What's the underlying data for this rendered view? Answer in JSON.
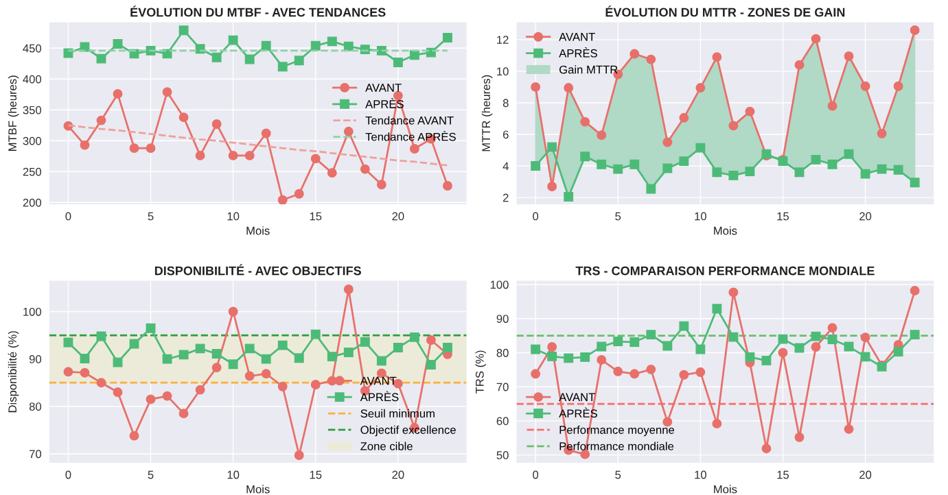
{
  "chart_data": [
    {
      "type": "line",
      "title": "ÉVOLUTION DU MTBF - AVEC TENDANCES",
      "xlabel": "Mois",
      "ylabel": "MTBF (heures)",
      "x": [
        0,
        1,
        2,
        3,
        4,
        5,
        6,
        7,
        8,
        9,
        10,
        11,
        12,
        13,
        14,
        15,
        16,
        17,
        18,
        19,
        20,
        21,
        22,
        23
      ],
      "xlim": [
        -1.15,
        24.15
      ],
      "xticks": [
        0,
        5,
        10,
        15,
        20
      ],
      "ylim": [
        197,
        492
      ],
      "yticks": [
        200,
        250,
        300,
        350,
        400,
        450
      ],
      "grid": true,
      "legend": "center right",
      "series": [
        {
          "name": "AVANT",
          "color": "#e8706a",
          "marker": "circle",
          "values": [
            324,
            293,
            333,
            376,
            288,
            288,
            379,
            338,
            276,
            327,
            276,
            276,
            312,
            204,
            214,
            271,
            248,
            315,
            254,
            229,
            373,
            287,
            303,
            227
          ]
        },
        {
          "name": "APRÈS",
          "color": "#4dbb78",
          "marker": "square",
          "values": [
            442,
            452,
            433,
            457,
            441,
            446,
            441,
            479,
            449,
            435,
            463,
            432,
            454,
            420,
            430,
            454,
            461,
            453,
            448,
            446,
            427,
            439,
            443,
            467
          ]
        },
        {
          "name": "Tendance AVANT",
          "color": "#eea19b",
          "marker": "none",
          "line_style": "dashed",
          "values": [
            325,
            322,
            319,
            317,
            314,
            311,
            308,
            305,
            302,
            300,
            297,
            294,
            291,
            288,
            285,
            283,
            280,
            277,
            274,
            271,
            268,
            266,
            263,
            260
          ]
        },
        {
          "name": "Tendance APRÈS",
          "color": "#8fd2a8",
          "marker": "none",
          "line_style": "dashed",
          "values": [
            446,
            446,
            446,
            446,
            446,
            446,
            446,
            446,
            446,
            446,
            446,
            446,
            446,
            446,
            446,
            446,
            446,
            446,
            446,
            446,
            446,
            446,
            446,
            446
          ]
        }
      ]
    },
    {
      "type": "line",
      "title": "ÉVOLUTION DU MTTR - ZONES DE GAIN",
      "xlabel": "Mois",
      "ylabel": "MTTR (heures)",
      "x": [
        0,
        1,
        2,
        3,
        4,
        5,
        6,
        7,
        8,
        9,
        10,
        11,
        12,
        13,
        14,
        15,
        16,
        17,
        18,
        19,
        20,
        21,
        22,
        23
      ],
      "xlim": [
        -1.15,
        24.15
      ],
      "xticks": [
        0,
        5,
        10,
        15,
        20
      ],
      "ylim": [
        1.57,
        13.1
      ],
      "yticks": [
        2,
        4,
        6,
        8,
        10,
        12
      ],
      "grid": true,
      "legend": "top left",
      "series": [
        {
          "name": "AVANT",
          "color": "#e8706a",
          "marker": "circle",
          "values": [
            9.0,
            2.7,
            8.95,
            6.8,
            5.95,
            9.8,
            11.1,
            10.75,
            5.5,
            7.05,
            8.95,
            10.9,
            6.55,
            7.45,
            4.65,
            4.4,
            10.4,
            12.05,
            7.8,
            10.95,
            9.05,
            6.05,
            9.05,
            12.6
          ]
        },
        {
          "name": "APRÈS",
          "color": "#4dbb78",
          "marker": "square",
          "values": [
            4.0,
            5.2,
            2.05,
            4.6,
            4.1,
            3.8,
            4.1,
            2.55,
            3.85,
            4.3,
            5.15,
            3.6,
            3.4,
            3.65,
            4.75,
            4.3,
            3.6,
            4.4,
            4.1,
            4.75,
            3.5,
            3.8,
            3.75,
            2.95
          ]
        },
        {
          "name": "Gain MTTR",
          "type": "area",
          "color": "#b0d9c6",
          "values": [
            9.0,
            2.7,
            8.95,
            6.8,
            5.95,
            9.8,
            11.1,
            10.75,
            5.5,
            7.05,
            8.95,
            10.9,
            6.55,
            7.45,
            4.65,
            4.4,
            10.4,
            12.05,
            7.8,
            10.95,
            9.05,
            6.05,
            9.05,
            12.6
          ]
        }
      ]
    },
    {
      "type": "line",
      "title": "DISPONIBILITÉ - AVEC OBJECTIFS",
      "xlabel": "Mois",
      "ylabel": "Disponibilité (%)",
      "x": [
        0,
        1,
        2,
        3,
        4,
        5,
        6,
        7,
        8,
        9,
        10,
        11,
        12,
        13,
        14,
        15,
        16,
        17,
        18,
        19,
        20,
        21,
        22,
        23
      ],
      "xlim": [
        -1.15,
        24.15
      ],
      "xticks": [
        0,
        5,
        10,
        15,
        20
      ],
      "ylim": [
        68.1,
        106.5
      ],
      "yticks": [
        70,
        80,
        90,
        100
      ],
      "grid": true,
      "legend": "bottom right",
      "series": [
        {
          "name": "AVANT",
          "color": "#e8706a",
          "marker": "circle",
          "values": [
            87.3,
            87.1,
            85.0,
            83.0,
            73.8,
            81.5,
            82.2,
            78.5,
            83.5,
            88.2,
            100.0,
            86.4,
            86.9,
            84.2,
            69.7,
            84.6,
            85.4,
            104.7,
            83.3,
            87.0,
            84.8,
            75.5,
            94.0,
            91.0
          ]
        },
        {
          "name": "APRÈS",
          "color": "#4dbb78",
          "marker": "square",
          "values": [
            93.5,
            90.1,
            94.8,
            89.3,
            93.2,
            96.5,
            90.0,
            90.9,
            92.2,
            91.1,
            88.9,
            92.2,
            90.0,
            92.9,
            90.2,
            95.2,
            90.5,
            91.4,
            93.6,
            89.6,
            92.4,
            94.6,
            88.8,
            92.4
          ]
        }
      ],
      "ref_lines": [
        {
          "axis": "y",
          "value": 85,
          "label": "Seuil minimum",
          "color": "#fbb03b",
          "line_style": "dashed"
        },
        {
          "axis": "y",
          "value": 95,
          "label": "Objectif excellence",
          "color": "#2e9e3a",
          "line_style": "dashed"
        }
      ],
      "bands": [
        {
          "axis": "y",
          "from": 85,
          "to": 95,
          "label": "Zone cible",
          "color": "#ecebd9"
        }
      ]
    },
    {
      "type": "line",
      "title": "TRS - COMPARAISON PERFORMANCE MONDIALE",
      "xlabel": "Mois",
      "ylabel": "TRS (%)",
      "x": [
        0,
        1,
        2,
        3,
        4,
        5,
        6,
        7,
        8,
        9,
        10,
        11,
        12,
        13,
        14,
        15,
        16,
        17,
        18,
        19,
        20,
        21,
        22,
        23
      ],
      "xlim": [
        -1.15,
        24.15
      ],
      "xticks": [
        0,
        5,
        10,
        15,
        20
      ],
      "ylim": [
        47.7,
        101.1
      ],
      "yticks": [
        50,
        60,
        70,
        80,
        90,
        100
      ],
      "grid": true,
      "legend": "bottom left",
      "series": [
        {
          "name": "AVANT",
          "color": "#e8706a",
          "marker": "circle",
          "values": [
            73.8,
            81.7,
            51.4,
            50.2,
            77.9,
            74.5,
            73.8,
            75.1,
            59.7,
            73.5,
            74.3,
            59.2,
            97.7,
            77.1,
            51.9,
            80.0,
            55.2,
            81.7,
            87.3,
            57.6,
            84.5,
            76.3,
            82.3,
            98.2
          ]
        },
        {
          "name": "APRÈS",
          "color": "#4dbb78",
          "marker": "square",
          "values": [
            81.0,
            78.9,
            78.4,
            78.7,
            81.8,
            83.3,
            83.1,
            85.3,
            82.0,
            87.8,
            81.0,
            92.9,
            84.6,
            78.7,
            77.7,
            84.0,
            81.4,
            84.8,
            83.9,
            81.8,
            78.8,
            75.9,
            80.3,
            85.3
          ]
        }
      ],
      "ref_lines": [
        {
          "axis": "y",
          "value": 65,
          "label": "Performance moyenne",
          "color": "#f76d6d",
          "line_style": "dashed"
        },
        {
          "axis": "y",
          "value": 85,
          "label": "Performance mondiale",
          "color": "#6abf6a",
          "line_style": "dashed"
        }
      ]
    }
  ]
}
